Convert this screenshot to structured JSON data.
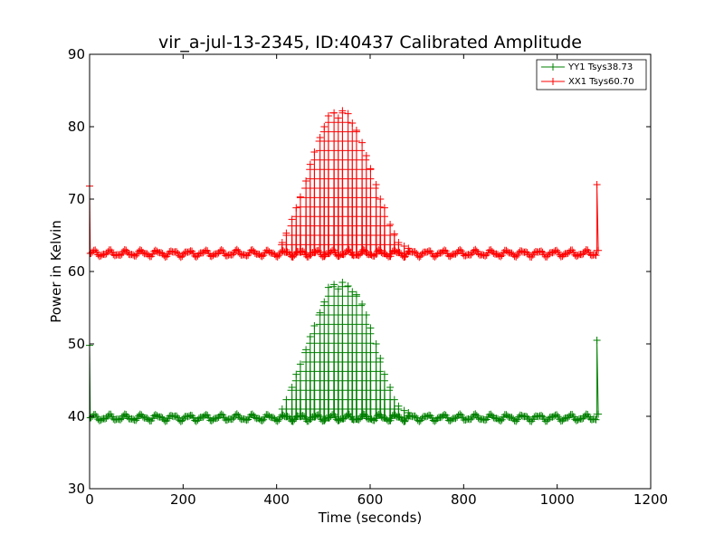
{
  "chart_data": {
    "type": "line",
    "title": "vir_a-jul-13-2345, ID:40437 Calibrated Amplitude",
    "xlabel": "Time (seconds)",
    "ylabel": "Power in Kelvin",
    "xlim": [
      0,
      1200
    ],
    "ylim": [
      30,
      90
    ],
    "xticks": [
      "0",
      "200",
      "400",
      "600",
      "800",
      "1000",
      "1200"
    ],
    "yticks": [
      "30",
      "40",
      "50",
      "60",
      "70",
      "80",
      "90"
    ],
    "grid": false,
    "legend_position": "top-right",
    "marker": "+",
    "series": [
      {
        "name": "YY1 Tsys38.73",
        "color": "#008000",
        "baseline": 39.8,
        "ripple": 0.35,
        "start_spike": [
          0,
          49.8
        ],
        "end_spike": [
          1085,
          50.5
        ],
        "end_value": 40.3,
        "pulse_times": [
          410,
          420,
          430,
          440,
          450,
          460,
          470,
          480,
          490,
          500,
          510,
          520,
          530,
          540,
          550,
          560,
          570,
          580,
          590,
          600,
          610,
          620,
          630,
          640,
          650,
          660,
          670,
          680
        ],
        "pulse_peaks": [
          41.0,
          42.3,
          44.0,
          45.8,
          47.2,
          49.2,
          51.0,
          52.5,
          54.3,
          55.8,
          57.8,
          58.2,
          57.6,
          58.5,
          58.0,
          57.2,
          56.8,
          55.5,
          54.0,
          52.2,
          50.0,
          48.0,
          45.8,
          44.0,
          42.3,
          41.4,
          40.8,
          40.5
        ]
      },
      {
        "name": "XX1 Tsys60.70",
        "color": "#ff0000",
        "baseline": 62.5,
        "ripple": 0.35,
        "start_spike": [
          0,
          71.8
        ],
        "end_spike": [
          1085,
          72.0
        ],
        "end_value": 62.9,
        "pulse_times": [
          410,
          420,
          430,
          440,
          450,
          460,
          470,
          480,
          490,
          500,
          510,
          520,
          530,
          540,
          550,
          560,
          570,
          580,
          590,
          600,
          610,
          620,
          630,
          640,
          650,
          660,
          670,
          680
        ],
        "pulse_peaks": [
          64.0,
          65.3,
          67.2,
          68.8,
          70.3,
          72.5,
          74.8,
          76.5,
          78.5,
          80.0,
          81.5,
          81.9,
          81.2,
          82.2,
          81.8,
          80.5,
          79.5,
          77.8,
          76.0,
          74.2,
          72.0,
          70.0,
          68.8,
          66.5,
          65.2,
          64.0,
          63.5,
          63.2
        ]
      }
    ]
  }
}
